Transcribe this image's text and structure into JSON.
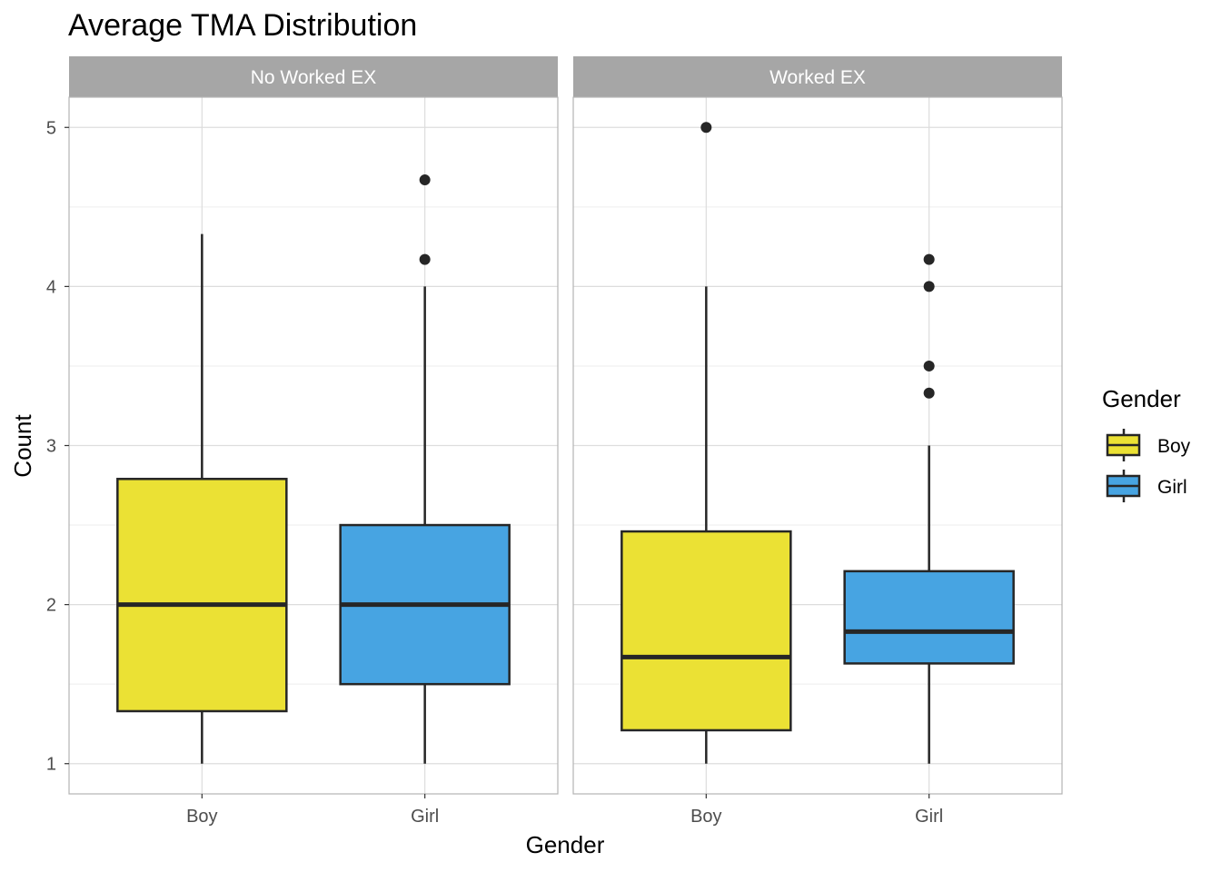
{
  "chart_data": {
    "type": "boxplot",
    "title": "Average TMA Distribution",
    "xlabel": "Gender",
    "ylabel": "Count",
    "ylim": [
      0.81,
      5.19
    ],
    "yticks": [
      1,
      2,
      3,
      4,
      5
    ],
    "categories": [
      "Boy",
      "Girl"
    ],
    "grid": true,
    "legend": {
      "title": "Gender",
      "position": "right",
      "entries": [
        {
          "label": "Boy",
          "color": "#EBE134"
        },
        {
          "label": "Girl",
          "color": "#47A4E2"
        }
      ]
    },
    "panels": [
      {
        "label": "No Worked EX",
        "boxes": [
          {
            "category": "Boy",
            "whisker_low": 1.0,
            "q1": 1.33,
            "median": 2.0,
            "q3": 2.79,
            "whisker_high": 4.33,
            "outliers": []
          },
          {
            "category": "Girl",
            "whisker_low": 1.0,
            "q1": 1.5,
            "median": 2.0,
            "q3": 2.5,
            "whisker_high": 4.0,
            "outliers": [
              4.67,
              4.17
            ]
          }
        ]
      },
      {
        "label": "Worked EX",
        "boxes": [
          {
            "category": "Boy",
            "whisker_low": 1.0,
            "q1": 1.21,
            "median": 1.67,
            "q3": 2.46,
            "whisker_high": 4.0,
            "outliers": [
              5.0
            ]
          },
          {
            "category": "Girl",
            "whisker_low": 1.0,
            "q1": 1.63,
            "median": 1.83,
            "q3": 2.21,
            "whisker_high": 3.0,
            "outliers": [
              4.17,
              4.0,
              3.5,
              3.33
            ]
          }
        ]
      }
    ],
    "colors": {
      "strip": "#A6A6A6",
      "panel_border": "#B3B3B3",
      "grid_major": "#DDDDDD",
      "grid_minor": "#EEEEEE",
      "box_line": "#262626"
    }
  }
}
